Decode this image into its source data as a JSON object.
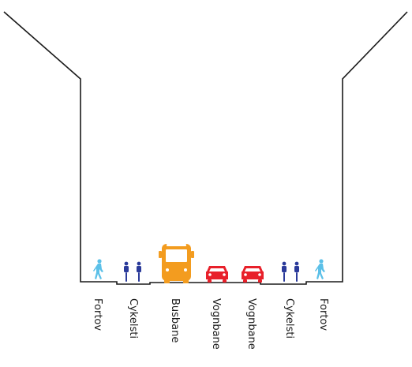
{
  "colors": {
    "outline": "#1a1a1a",
    "pedestrian": "#5bc0e8",
    "cyclist": "#2a3a9a",
    "bus": "#f39c1f",
    "car": "#e8202a"
  },
  "lanes": [
    {
      "label": "Fortov",
      "icon": "pedestrian-icon"
    },
    {
      "label": "Cykelsti",
      "icon": "cyclist-icon"
    },
    {
      "label": "Busbane",
      "icon": "bus-icon"
    },
    {
      "label": "Vognbane",
      "icon": "car-icon"
    },
    {
      "label": "Vognbane",
      "icon": "car-icon"
    },
    {
      "label": "Cykelsti",
      "icon": "cyclist-icon"
    },
    {
      "label": "Fortov",
      "icon": "pedestrian-icon"
    }
  ]
}
